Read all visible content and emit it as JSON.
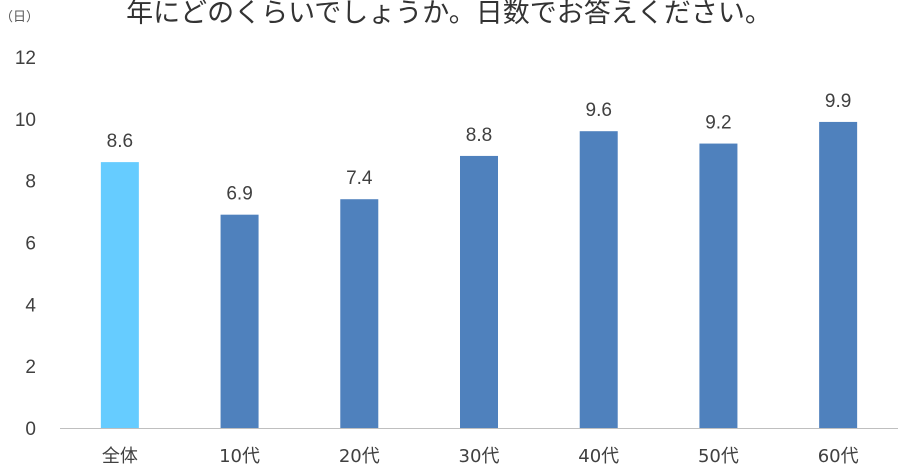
{
  "chart_data": {
    "type": "bar",
    "title": "年にどのくらいでしょうか。日数でお答えください。",
    "unit_label": "（日）",
    "categories": [
      "全体",
      "10代",
      "20代",
      "30代",
      "40代",
      "50代",
      "60代"
    ],
    "values": [
      8.6,
      6.9,
      7.4,
      8.8,
      9.6,
      9.2,
      9.9
    ],
    "value_labels": [
      "8.6",
      "6.9",
      "7.4",
      "8.8",
      "9.6",
      "9.2",
      "9.9"
    ],
    "ylim": [
      0,
      12
    ],
    "yticks": [
      0,
      2,
      4,
      6,
      8,
      10,
      12
    ],
    "ytick_labels": [
      "0",
      "2",
      "4",
      "6",
      "8",
      "10",
      "12"
    ],
    "grid": false,
    "colors": {
      "highlight": "#66CCFF",
      "default": "#4F81BD",
      "axis": "#BFBFBF"
    },
    "highlight_index": 0
  }
}
